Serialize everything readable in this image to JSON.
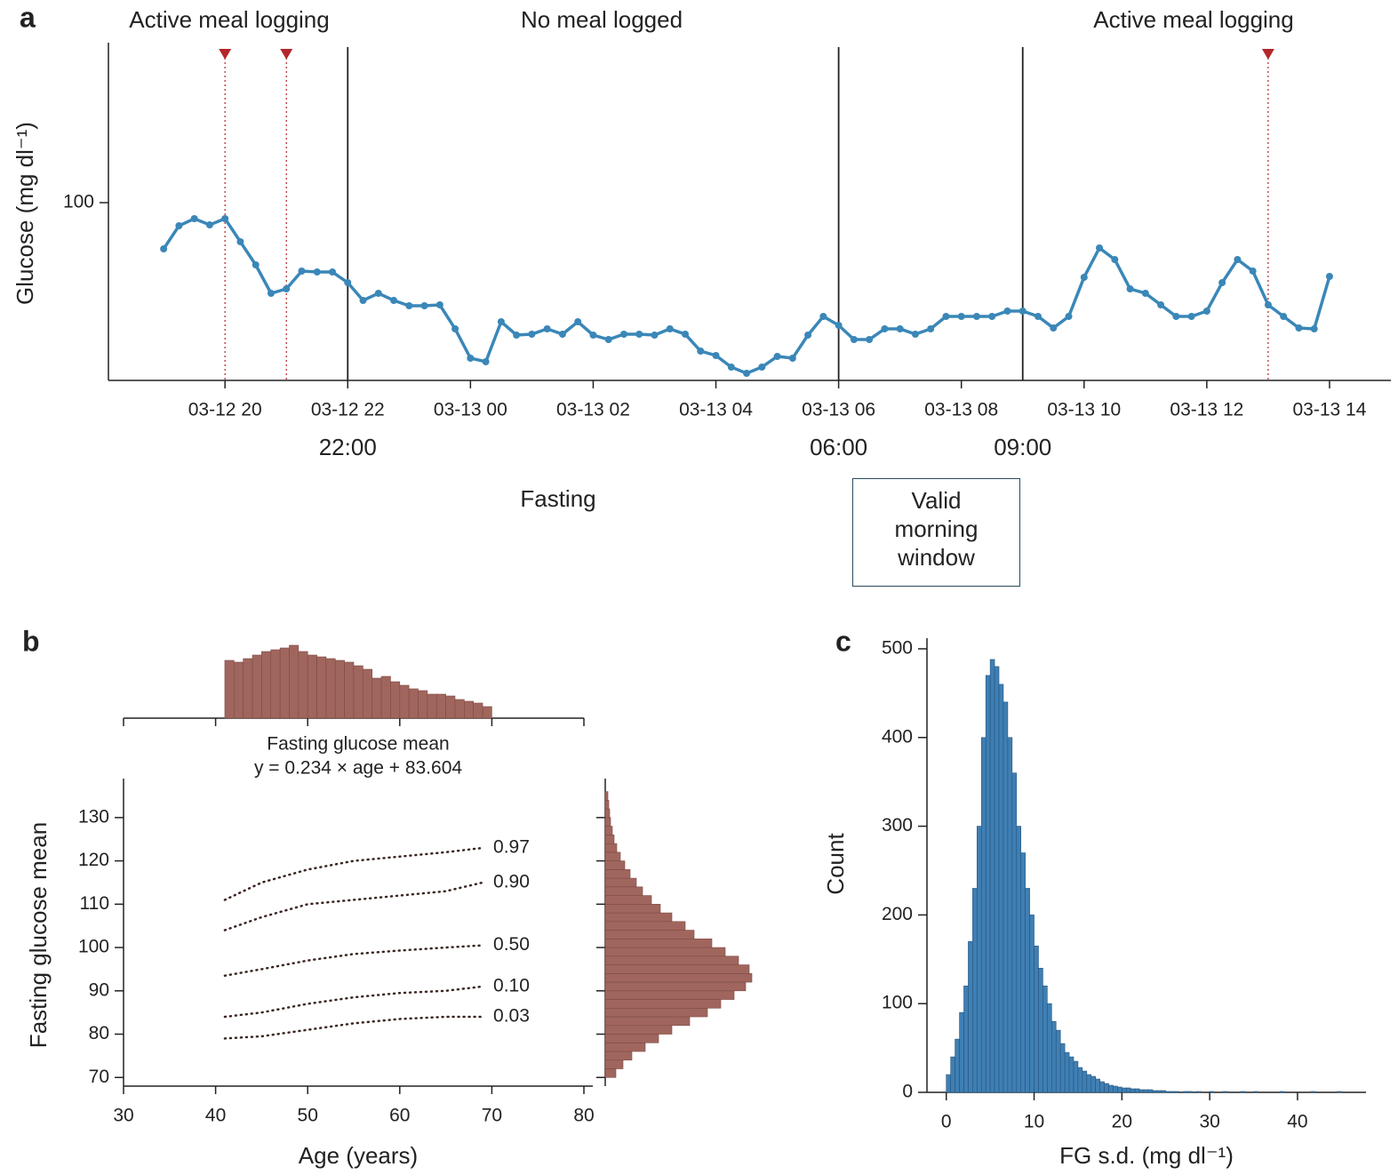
{
  "chart_data": [
    {
      "type": "line",
      "panel": "a",
      "ylabel": "Glucose (mg dl⁻¹)",
      "color": "#3a87b8",
      "markers": true,
      "x": [
        19,
        19.25,
        19.5,
        19.75,
        20,
        20.25,
        20.5,
        20.75,
        21,
        21.25,
        21.5,
        21.75,
        22,
        22.25,
        22.5,
        22.75,
        23,
        23.25,
        23.5,
        23.75,
        24,
        24.25,
        24.5,
        24.75,
        25,
        25.25,
        25.5,
        25.75,
        26,
        26.25,
        26.5,
        26.75,
        27,
        27.25,
        27.5,
        27.75,
        28,
        28.25,
        28.5,
        28.75,
        29,
        29.25,
        29.5,
        29.75,
        30,
        30.25,
        30.5,
        30.75,
        31,
        31.25,
        31.5,
        31.75,
        32,
        32.25,
        32.5,
        32.75,
        33,
        33.25,
        33.5,
        33.75,
        34,
        34.25,
        34.5,
        34.75,
        35,
        35.25,
        35.5,
        35.75,
        36,
        36.25,
        36.5,
        36.75,
        37,
        37.25,
        37.5,
        37.75,
        38
      ],
      "values": [
        94.8,
        97.4,
        98.2,
        97.5,
        98.2,
        95.6,
        93.0,
        89.8,
        90.3,
        92.3,
        92.2,
        92.2,
        91.0,
        89.0,
        89.8,
        89.0,
        88.4,
        88.4,
        88.5,
        85.8,
        82.5,
        82.1,
        86.6,
        85.1,
        85.2,
        85.8,
        85.2,
        86.6,
        85.1,
        84.6,
        85.2,
        85.2,
        85.1,
        85.8,
        85.2,
        83.3,
        82.8,
        81.5,
        80.8,
        81.5,
        82.7,
        82.5,
        85.1,
        87.2,
        86.2,
        84.6,
        84.6,
        85.8,
        85.8,
        85.2,
        85.8,
        87.2,
        87.2,
        87.2,
        87.2,
        87.8,
        87.8,
        87.2,
        85.9,
        87.2,
        91.6,
        94.9,
        93.6,
        90.3,
        89.8,
        88.5,
        87.2,
        87.2,
        87.8,
        91.0,
        93.6,
        92.3,
        88.5,
        87.2,
        85.9,
        85.8,
        91.7
      ],
      "xlim": [
        18.1,
        39
      ],
      "ylim": [
        80,
        118
      ],
      "xticks": [
        {
          "value": 20,
          "label": "03-12 20"
        },
        {
          "value": 22,
          "label": "03-12 22"
        },
        {
          "value": 24,
          "label": "03-13 00"
        },
        {
          "value": 26,
          "label": "03-13 02"
        },
        {
          "value": 28,
          "label": "03-13 04"
        },
        {
          "value": 30,
          "label": "03-13 06"
        },
        {
          "value": 32,
          "label": "03-13 08"
        },
        {
          "value": 34,
          "label": "03-13 10"
        },
        {
          "value": 36,
          "label": "03-13 12"
        },
        {
          "value": 38,
          "label": "03-13 14"
        }
      ],
      "yticks": [
        100
      ],
      "meal_times": [
        20,
        21,
        37
      ],
      "meal_color": "#b3262b",
      "phase_boundaries": [
        {
          "value": 22,
          "label": "22:00"
        },
        {
          "value": 30,
          "label": "06:00"
        },
        {
          "value": 33,
          "label": "09:00"
        }
      ],
      "phases": [
        "Active meal logging",
        "No meal logged",
        "Active meal logging"
      ],
      "fasting_label": "Fasting",
      "window_label": "Valid morning window"
    },
    {
      "type": "line",
      "panel": "b",
      "title": "Fasting glucose mean",
      "subtitle": "y = 0.234 × age + 83.604",
      "xlabel": "Age (years)",
      "ylabel": "Fasting glucose mean",
      "x": [
        41,
        45,
        50,
        55,
        60,
        65,
        69
      ],
      "series": [
        {
          "name": "0.97",
          "color": "#3a2420",
          "values": [
            111,
            115,
            118,
            120,
            121,
            122,
            123
          ]
        },
        {
          "name": "0.90",
          "color": "#3a2420",
          "values": [
            104,
            107,
            110,
            111,
            112,
            113,
            115
          ]
        },
        {
          "name": "0.50",
          "color": "#3a2420",
          "values": [
            93.5,
            95,
            97,
            98.5,
            99.3,
            100,
            100.5
          ]
        },
        {
          "name": "0.10",
          "color": "#3a2420",
          "values": [
            84,
            85,
            87,
            88.5,
            89.5,
            90,
            91
          ]
        },
        {
          "name": "0.03",
          "color": "#3a2420",
          "values": [
            79,
            79.5,
            81,
            82.5,
            83.5,
            84,
            84
          ]
        }
      ],
      "xlim": [
        30,
        80
      ],
      "ylim": [
        68,
        139
      ],
      "xticks": [
        30,
        40,
        50,
        60,
        70,
        80
      ],
      "yticks": [
        70,
        80,
        90,
        100,
        110,
        120,
        130
      ]
    },
    {
      "type": "histogram",
      "orientation": "vertical",
      "color": "#a0665e",
      "tick_labels": false,
      "bins": [
        41,
        42,
        43,
        44,
        45,
        46,
        47,
        48,
        49,
        50,
        51,
        52,
        53,
        54,
        55,
        56,
        57,
        58,
        59,
        60,
        61,
        62,
        63,
        64,
        65,
        66,
        67,
        68,
        69,
        70
      ],
      "values": [
        65,
        63,
        67,
        71,
        75,
        77,
        79,
        82,
        75,
        71,
        69,
        67,
        65,
        63,
        59,
        55,
        45,
        47,
        41,
        37,
        33,
        31,
        27,
        27,
        25,
        21,
        19,
        17,
        13
      ],
      "xlim": [
        30,
        80
      ],
      "ylim": [
        0,
        90
      ],
      "xticks": [
        30,
        40,
        50,
        60,
        70,
        80
      ]
    },
    {
      "type": "histogram",
      "orientation": "horizontal",
      "color": "#a0665e",
      "tick_labels": false,
      "bins": [
        70,
        72,
        74,
        76,
        78,
        80,
        82,
        84,
        86,
        88,
        90,
        92,
        94,
        96,
        98,
        100,
        102,
        104,
        106,
        108,
        110,
        112,
        114,
        116,
        118,
        120,
        122,
        124,
        126,
        128,
        130,
        132,
        134,
        136
      ],
      "values": [
        12,
        20,
        30,
        45,
        60,
        75,
        95,
        115,
        130,
        145,
        158,
        165,
        162,
        150,
        135,
        120,
        100,
        90,
        75,
        62,
        52,
        42,
        35,
        28,
        22,
        17,
        13,
        10,
        8,
        6,
        5,
        4,
        3
      ],
      "xlim": [
        0,
        180
      ],
      "ylim": [
        68,
        139
      ],
      "yticks": [
        70,
        80,
        90,
        100,
        110,
        120,
        130
      ]
    },
    {
      "type": "histogram",
      "orientation": "vertical",
      "panel": "c",
      "color": "#3f7fb3",
      "xlabel": "FG s.d. (mg dl⁻¹)",
      "ylabel": "Count",
      "bins": [
        0,
        0.5,
        1,
        1.5,
        2,
        2.5,
        3,
        3.5,
        4,
        4.5,
        5,
        5.5,
        6,
        6.5,
        7,
        7.5,
        8,
        8.5,
        9,
        9.5,
        10,
        10.5,
        11,
        11.5,
        12,
        12.5,
        13,
        13.5,
        14,
        14.5,
        15,
        15.5,
        16,
        16.5,
        17,
        17.5,
        18,
        18.5,
        19,
        19.5,
        20,
        20.5,
        21,
        21.5,
        22,
        22.5,
        23,
        23.5,
        24,
        24.5,
        25,
        25.5,
        26,
        26.5,
        27,
        27.5,
        28,
        28.5,
        29,
        29.5,
        30,
        30.5,
        31,
        31.5,
        32,
        32.5,
        33,
        33.5,
        34,
        34.5,
        35,
        35.5,
        36,
        36.5,
        37,
        37.5,
        38,
        38.5,
        39,
        39.5,
        40,
        40.5,
        41,
        41.5,
        42,
        42.5,
        43,
        43.5,
        44,
        44.5,
        45
      ],
      "values": [
        20,
        40,
        60,
        90,
        120,
        170,
        230,
        300,
        400,
        470,
        488,
        480,
        460,
        440,
        400,
        360,
        300,
        270,
        230,
        200,
        165,
        140,
        120,
        100,
        80,
        70,
        55,
        45,
        40,
        35,
        28,
        24,
        20,
        18,
        15,
        12,
        10,
        8,
        7,
        6,
        5,
        5,
        4,
        4,
        3,
        3,
        3,
        2,
        2,
        2,
        1,
        1,
        1,
        0,
        1,
        1,
        0,
        1,
        0,
        0,
        1,
        0,
        0,
        1,
        0,
        0,
        0,
        1,
        0,
        0,
        1,
        0,
        0,
        0,
        0,
        0,
        1,
        0,
        0,
        0,
        0,
        0,
        0,
        1,
        0,
        0,
        0,
        0,
        0,
        1
      ],
      "xlim": [
        -2.2,
        47.8
      ],
      "ylim": [
        0,
        512
      ],
      "xticks": [
        0,
        10,
        20,
        30,
        40
      ],
      "yticks": [
        0,
        100,
        200,
        300,
        400,
        500
      ]
    }
  ]
}
